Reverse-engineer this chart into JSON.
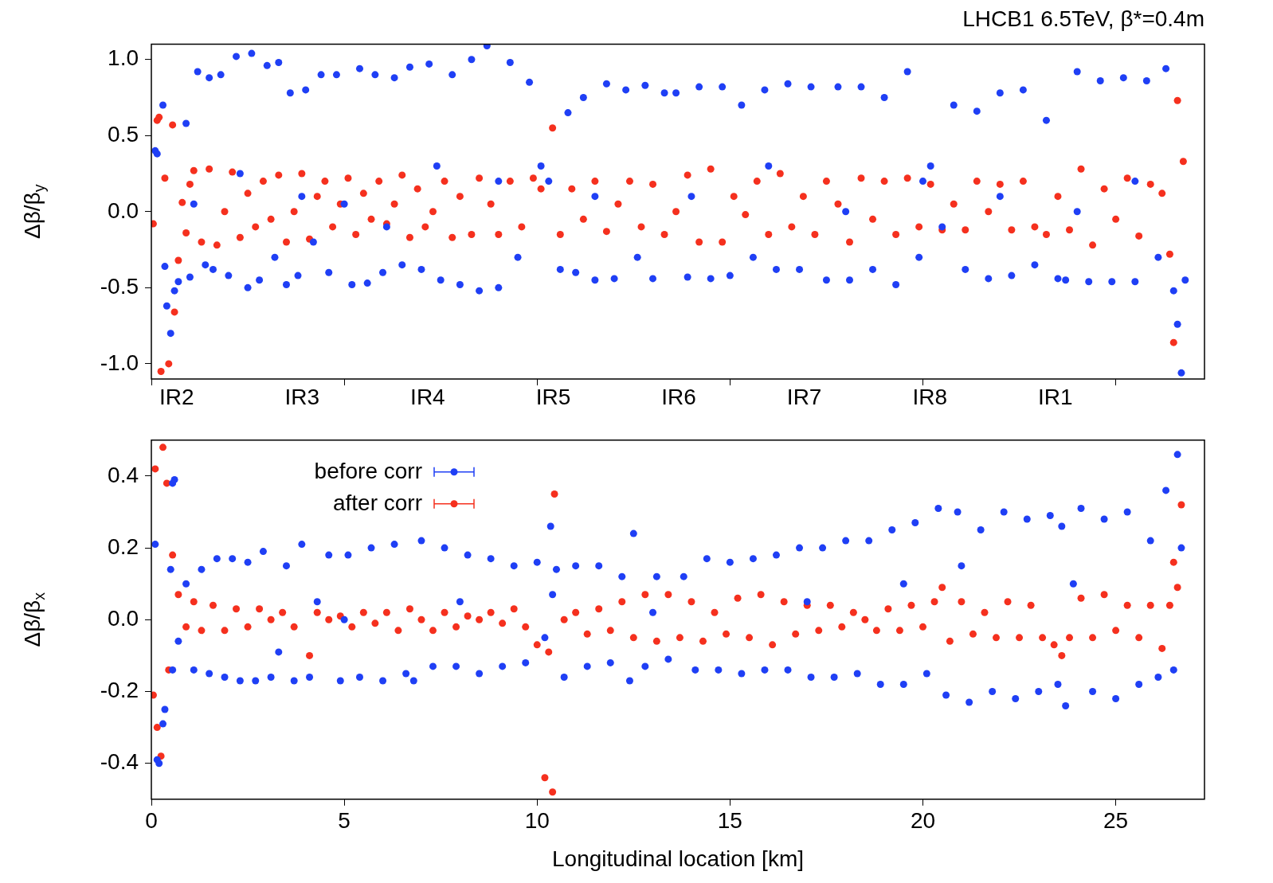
{
  "chart_data": [
    {
      "type": "scatter",
      "title": "LHCB1 6.5TeV, β*=0.4m",
      "ylabel": "Δβ/β$_{y}$",
      "xlim": [
        0,
        27.3
      ],
      "ylim": [
        -1.1,
        1.1
      ],
      "marker": "circle",
      "grid": false,
      "tick_labels": "y",
      "xticks": [
        {
          "value": 0,
          "label": null
        },
        {
          "value": 5,
          "label": null
        },
        {
          "value": 10,
          "label": null
        },
        {
          "value": 15,
          "label": null
        },
        {
          "value": 20,
          "label": null
        },
        {
          "value": 25,
          "label": null
        }
      ],
      "annotations": [
        "IR2",
        "IR3",
        "IR4",
        "IR5",
        "IR6",
        "IR7",
        "IR8",
        "IR1"
      ],
      "yticks": [
        {
          "value": -1,
          "label": "-1.0"
        },
        {
          "value": -0.5,
          "label": "-0.5"
        },
        {
          "value": 0,
          "label": "0.0"
        },
        {
          "value": 0.5,
          "label": "0.5"
        },
        {
          "value": 1,
          "label": "1.0"
        }
      ],
      "series": [
        {
          "color": "#1f3ff5",
          "x": [
            0.1,
            0.15,
            0.3,
            0.35,
            0.4,
            0.5,
            0.6,
            0.7,
            0.9,
            1.0,
            1.2,
            1.4,
            1.5,
            1.6,
            1.8,
            2.0,
            2.2,
            2.5,
            2.6,
            2.8,
            3.0,
            3.2,
            3.3,
            3.5,
            3.6,
            3.8,
            4.0,
            4.2,
            4.4,
            4.6,
            4.8,
            5.2,
            5.4,
            5.6,
            5.8,
            6.0,
            6.3,
            6.5,
            6.7,
            7.0,
            7.2,
            7.5,
            7.8,
            8.0,
            8.3,
            8.5,
            8.7,
            9.0,
            9.3,
            9.5,
            9.8,
            10.1,
            10.3,
            10.6,
            10.8,
            11.0,
            11.2,
            11.5,
            11.8,
            12.0,
            12.3,
            12.6,
            12.8,
            13.0,
            13.3,
            13.6,
            13.9,
            14.2,
            14.5,
            14.8,
            15.0,
            15.3,
            15.6,
            15.9,
            16.2,
            16.5,
            16.8,
            17.1,
            17.5,
            17.8,
            18.1,
            18.4,
            18.7,
            19.0,
            19.3,
            19.6,
            19.9,
            20.2,
            20.5,
            20.8,
            21.1,
            21.4,
            21.7,
            22.0,
            22.3,
            22.6,
            22.9,
            23.2,
            23.5,
            23.7,
            24.0,
            24.3,
            24.6,
            24.9,
            25.2,
            25.5,
            25.8,
            26.1,
            26.3,
            26.5,
            26.6,
            26.7,
            1.1,
            2.3,
            3.9,
            5.0,
            6.1,
            7.4,
            9.0,
            11.5,
            14.0,
            16.0,
            18.0,
            20.0,
            22.0,
            24.0,
            25.5,
            26.8
          ],
          "values": [
            0.4,
            0.38,
            0.7,
            -0.36,
            -0.62,
            -0.8,
            -0.52,
            -0.46,
            0.58,
            -0.43,
            0.92,
            -0.35,
            0.88,
            -0.38,
            0.9,
            -0.42,
            1.02,
            -0.5,
            1.04,
            -0.45,
            0.96,
            -0.3,
            0.98,
            -0.48,
            0.78,
            -0.42,
            0.8,
            -0.2,
            0.9,
            -0.4,
            0.9,
            -0.48,
            0.94,
            -0.47,
            0.9,
            -0.4,
            0.88,
            -0.35,
            0.95,
            -0.38,
            0.97,
            -0.45,
            0.9,
            -0.48,
            1.0,
            -0.52,
            1.09,
            -0.5,
            0.98,
            -0.3,
            0.85,
            0.3,
            0.2,
            -0.38,
            0.65,
            -0.4,
            0.75,
            -0.45,
            0.84,
            -0.44,
            0.8,
            -0.3,
            0.83,
            -0.44,
            0.78,
            0.78,
            -0.43,
            0.82,
            -0.44,
            0.82,
            -0.42,
            0.7,
            -0.3,
            0.8,
            -0.38,
            0.84,
            -0.38,
            0.82,
            -0.45,
            0.82,
            -0.45,
            0.82,
            -0.38,
            0.75,
            -0.48,
            0.92,
            -0.3,
            0.3,
            -0.1,
            0.7,
            -0.38,
            0.66,
            -0.44,
            0.78,
            -0.42,
            0.8,
            -0.35,
            0.6,
            -0.44,
            -0.45,
            0.92,
            -0.46,
            0.86,
            -0.46,
            0.88,
            -0.46,
            0.86,
            -0.3,
            0.94,
            -0.52,
            -0.74,
            -1.06,
            0.05,
            0.25,
            0.1,
            0.05,
            -0.1,
            0.3,
            0.2,
            0.1,
            0.1,
            0.3,
            0.0,
            0.2,
            0.1,
            0.0,
            0.2,
            -0.45
          ]
        },
        {
          "color": "#f5301e",
          "x": [
            0.05,
            0.15,
            0.2,
            0.25,
            0.35,
            0.45,
            0.55,
            0.6,
            0.7,
            0.8,
            0.9,
            1.0,
            1.1,
            1.3,
            1.5,
            1.7,
            1.9,
            2.1,
            2.3,
            2.5,
            2.7,
            2.9,
            3.1,
            3.3,
            3.5,
            3.7,
            3.9,
            4.1,
            4.3,
            4.5,
            4.7,
            4.9,
            5.1,
            5.3,
            5.5,
            5.7,
            5.9,
            6.1,
            6.3,
            6.5,
            6.7,
            6.9,
            7.1,
            7.3,
            7.6,
            7.8,
            8.0,
            8.3,
            8.5,
            8.8,
            9.0,
            9.3,
            9.6,
            9.9,
            10.1,
            10.4,
            10.6,
            10.9,
            11.2,
            11.5,
            11.8,
            12.1,
            12.4,
            12.7,
            13.0,
            13.3,
            13.6,
            13.9,
            14.2,
            14.5,
            14.8,
            15.1,
            15.4,
            15.7,
            16.0,
            16.3,
            16.6,
            16.9,
            17.2,
            17.5,
            17.8,
            18.1,
            18.4,
            18.7,
            19.0,
            19.3,
            19.6,
            19.9,
            20.2,
            20.5,
            20.8,
            21.1,
            21.4,
            21.7,
            22.0,
            22.3,
            22.6,
            22.9,
            23.2,
            23.5,
            23.8,
            24.1,
            24.4,
            24.7,
            25.0,
            25.3,
            25.6,
            25.9,
            26.2,
            26.4,
            26.5,
            26.6,
            26.75
          ],
          "values": [
            -0.08,
            0.6,
            0.62,
            -1.05,
            0.22,
            -1.0,
            0.57,
            -0.66,
            -0.32,
            0.06,
            -0.14,
            0.18,
            0.27,
            -0.2,
            0.28,
            -0.22,
            0.0,
            0.26,
            -0.17,
            0.12,
            -0.1,
            0.2,
            -0.05,
            0.24,
            -0.2,
            0.0,
            0.25,
            -0.18,
            0.1,
            0.2,
            -0.1,
            0.05,
            0.22,
            -0.15,
            0.12,
            -0.05,
            0.2,
            -0.08,
            0.05,
            0.24,
            -0.17,
            0.15,
            -0.1,
            0.0,
            0.2,
            -0.17,
            0.1,
            -0.15,
            0.22,
            0.05,
            -0.15,
            0.2,
            -0.1,
            0.22,
            0.15,
            0.55,
            -0.15,
            0.15,
            -0.05,
            0.2,
            -0.13,
            0.05,
            0.2,
            -0.1,
            0.18,
            -0.15,
            0.0,
            0.24,
            -0.2,
            0.28,
            -0.2,
            0.1,
            -0.02,
            0.2,
            -0.15,
            0.25,
            -0.1,
            0.1,
            -0.15,
            0.2,
            0.05,
            -0.2,
            0.22,
            -0.05,
            0.2,
            -0.15,
            0.22,
            -0.1,
            0.18,
            -0.12,
            0.05,
            -0.12,
            0.2,
            0.0,
            0.18,
            -0.12,
            0.2,
            -0.1,
            -0.15,
            0.1,
            -0.12,
            0.28,
            -0.22,
            0.15,
            -0.05,
            0.22,
            -0.16,
            0.18,
            0.12,
            -0.28,
            -0.86,
            0.73,
            0.33
          ]
        }
      ]
    },
    {
      "type": "scatter",
      "xlabel": "Longitudinal location [km]",
      "ylabel": "Δβ/β$_{x}$",
      "xlim": [
        0,
        27.3
      ],
      "ylim": [
        -0.5,
        0.5
      ],
      "marker": "circle",
      "grid": false,
      "legend": "top left",
      "xticks": [
        0,
        5,
        10,
        15,
        20,
        25
      ],
      "yticks": [
        {
          "value": -0.4,
          "label": "-0.4"
        },
        {
          "value": -0.2,
          "label": "-0.2"
        },
        {
          "value": 0,
          "label": "0.0"
        },
        {
          "value": 0.2,
          "label": "0.2"
        },
        {
          "value": 0.4,
          "label": "0.4"
        }
      ],
      "series": [
        {
          "name": "before corr",
          "color": "#1f3ff5",
          "x": [
            0.1,
            0.15,
            0.2,
            0.3,
            0.35,
            0.55,
            0.6,
            0.5,
            0.55,
            0.7,
            0.9,
            1.1,
            1.3,
            1.5,
            1.7,
            1.9,
            2.1,
            2.3,
            2.5,
            2.7,
            2.9,
            3.1,
            3.3,
            3.5,
            3.7,
            3.9,
            4.1,
            4.3,
            4.6,
            4.9,
            5.1,
            5.4,
            5.7,
            6.0,
            6.3,
            6.6,
            6.8,
            7.0,
            7.3,
            7.6,
            7.9,
            8.2,
            8.5,
            8.8,
            9.1,
            9.4,
            9.7,
            10.0,
            10.2,
            10.35,
            10.4,
            10.5,
            10.7,
            11.0,
            11.3,
            11.6,
            11.9,
            12.2,
            12.4,
            12.5,
            12.8,
            13.1,
            13.4,
            13.8,
            14.1,
            14.4,
            14.7,
            15.0,
            15.3,
            15.6,
            15.9,
            16.2,
            16.5,
            16.8,
            17.1,
            17.4,
            17.7,
            18.0,
            18.3,
            18.6,
            18.9,
            19.2,
            19.5,
            19.8,
            20.1,
            20.4,
            20.6,
            20.9,
            21.2,
            21.5,
            21.8,
            22.1,
            22.4,
            22.7,
            23.0,
            23.3,
            23.5,
            23.6,
            23.7,
            23.9,
            24.1,
            24.4,
            24.7,
            25.0,
            25.3,
            25.6,
            25.9,
            26.1,
            26.3,
            26.5,
            26.6,
            26.7,
            5.0,
            8.0,
            13.0,
            17.0,
            19.5,
            21.0
          ],
          "values": [
            0.21,
            -0.39,
            -0.4,
            -0.29,
            -0.25,
            0.38,
            0.39,
            0.14,
            -0.14,
            -0.06,
            0.1,
            -0.14,
            0.14,
            -0.15,
            0.17,
            -0.16,
            0.17,
            -0.17,
            0.16,
            -0.17,
            0.19,
            -0.16,
            -0.09,
            0.15,
            -0.17,
            0.21,
            -0.16,
            0.05,
            0.18,
            -0.17,
            0.18,
            -0.16,
            0.2,
            -0.17,
            0.21,
            -0.15,
            -0.17,
            0.22,
            -0.13,
            0.2,
            -0.13,
            0.18,
            -0.15,
            0.17,
            -0.13,
            0.15,
            -0.12,
            0.16,
            -0.05,
            0.26,
            0.07,
            0.14,
            -0.16,
            0.15,
            -0.13,
            0.15,
            -0.12,
            0.12,
            -0.17,
            0.24,
            -0.13,
            0.12,
            -0.11,
            0.12,
            -0.14,
            0.17,
            -0.14,
            0.16,
            -0.15,
            0.17,
            -0.14,
            0.18,
            -0.14,
            0.2,
            -0.16,
            0.2,
            -0.16,
            0.22,
            -0.15,
            0.22,
            -0.18,
            0.25,
            -0.18,
            0.27,
            -0.15,
            0.31,
            -0.21,
            0.3,
            -0.23,
            0.25,
            -0.2,
            0.3,
            -0.22,
            0.28,
            -0.2,
            0.29,
            -0.18,
            0.26,
            -0.24,
            0.1,
            0.31,
            -0.2,
            0.28,
            -0.22,
            0.3,
            -0.18,
            0.22,
            -0.16,
            0.36,
            -0.14,
            0.46,
            0.2,
            0.0,
            0.05,
            0.02,
            0.05,
            0.1,
            0.15
          ]
        },
        {
          "name": "after corr",
          "color": "#f5301e",
          "x": [
            0.05,
            0.1,
            0.15,
            0.25,
            0.3,
            0.4,
            0.45,
            0.55,
            0.7,
            0.9,
            1.1,
            1.3,
            1.6,
            1.9,
            2.2,
            2.5,
            2.8,
            3.1,
            3.4,
            3.7,
            4.1,
            4.3,
            4.6,
            4.9,
            5.2,
            5.5,
            5.8,
            6.1,
            6.4,
            6.7,
            7.0,
            7.3,
            7.6,
            7.9,
            8.2,
            8.5,
            8.8,
            9.1,
            9.4,
            9.7,
            10.0,
            10.2,
            10.3,
            10.4,
            10.45,
            10.7,
            11.0,
            11.3,
            11.6,
            11.9,
            12.2,
            12.5,
            12.8,
            13.1,
            13.4,
            13.7,
            14.0,
            14.3,
            14.6,
            14.9,
            15.2,
            15.5,
            15.8,
            16.1,
            16.4,
            16.7,
            17.0,
            17.3,
            17.6,
            17.9,
            18.2,
            18.5,
            18.8,
            19.1,
            19.4,
            19.7,
            20.0,
            20.3,
            20.5,
            20.7,
            21.0,
            21.3,
            21.6,
            21.9,
            22.2,
            22.5,
            22.8,
            23.1,
            23.4,
            23.6,
            23.8,
            24.1,
            24.4,
            24.7,
            25.0,
            25.3,
            25.6,
            25.9,
            26.2,
            26.4,
            26.5,
            26.6,
            26.7
          ],
          "values": [
            -0.21,
            0.42,
            -0.3,
            -0.38,
            0.48,
            0.38,
            -0.14,
            0.18,
            0.07,
            -0.02,
            0.05,
            -0.03,
            0.04,
            -0.03,
            0.03,
            -0.02,
            0.03,
            0.0,
            0.02,
            -0.02,
            -0.1,
            0.02,
            0.0,
            0.01,
            -0.02,
            0.02,
            -0.01,
            0.02,
            -0.03,
            0.03,
            0.0,
            -0.03,
            0.02,
            -0.02,
            0.01,
            0.0,
            0.02,
            -0.01,
            0.03,
            -0.02,
            -0.07,
            -0.44,
            -0.09,
            -0.48,
            0.35,
            0.0,
            0.02,
            -0.04,
            0.03,
            -0.03,
            0.05,
            -0.05,
            0.07,
            -0.06,
            0.07,
            -0.05,
            0.05,
            -0.06,
            0.02,
            -0.04,
            0.06,
            -0.05,
            0.07,
            -0.07,
            0.05,
            -0.04,
            0.04,
            -0.03,
            0.04,
            -0.02,
            0.02,
            0.0,
            -0.03,
            0.03,
            -0.03,
            0.04,
            -0.02,
            0.05,
            0.09,
            -0.06,
            0.05,
            -0.04,
            0.02,
            -0.05,
            0.05,
            -0.05,
            0.04,
            -0.05,
            -0.07,
            -0.1,
            -0.05,
            0.06,
            -0.05,
            0.07,
            -0.03,
            0.04,
            -0.05,
            0.04,
            -0.08,
            0.04,
            0.16,
            0.09,
            0.32
          ]
        }
      ]
    }
  ]
}
